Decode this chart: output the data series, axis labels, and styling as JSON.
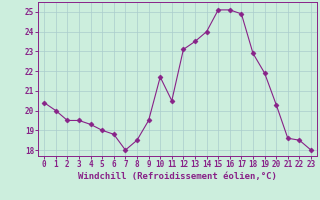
{
  "x": [
    0,
    1,
    2,
    3,
    4,
    5,
    6,
    7,
    8,
    9,
    10,
    11,
    12,
    13,
    14,
    15,
    16,
    17,
    18,
    19,
    20,
    21,
    22,
    23
  ],
  "y": [
    20.4,
    20.0,
    19.5,
    19.5,
    19.3,
    19.0,
    18.8,
    18.0,
    18.5,
    19.5,
    21.7,
    20.5,
    23.1,
    23.5,
    24.0,
    25.1,
    25.1,
    24.9,
    22.9,
    21.9,
    20.3,
    18.6,
    18.5,
    18.0
  ],
  "line_color": "#882288",
  "marker": "D",
  "marker_size": 2.5,
  "background_color": "#cceedd",
  "grid_color": "#aacccc",
  "xlabel": "Windchill (Refroidissement éolien,°C)",
  "xlabel_fontsize": 6.5,
  "xlabel_color": "#882288",
  "tick_color": "#882288",
  "tick_fontsize": 5.5,
  "ylim": [
    17.7,
    25.5
  ],
  "xlim": [
    -0.5,
    23.5
  ],
  "yticks": [
    18,
    19,
    20,
    21,
    22,
    23,
    24,
    25
  ],
  "xticks": [
    0,
    1,
    2,
    3,
    4,
    5,
    6,
    7,
    8,
    9,
    10,
    11,
    12,
    13,
    14,
    15,
    16,
    17,
    18,
    19,
    20,
    21,
    22,
    23
  ]
}
